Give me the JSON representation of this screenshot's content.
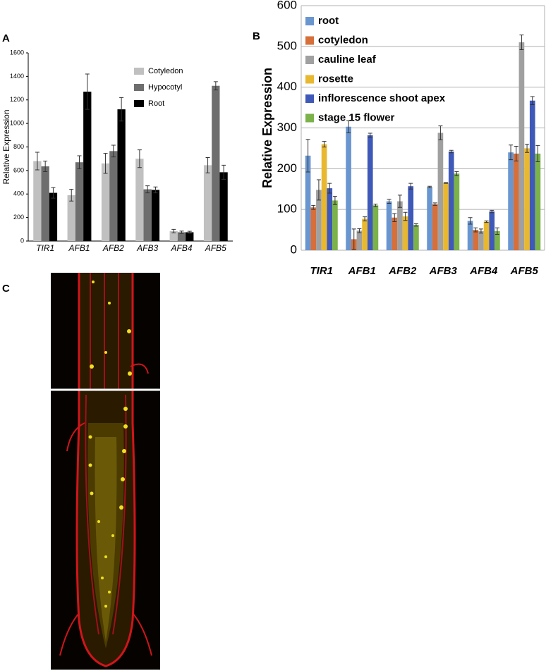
{
  "panels": {
    "a": "A",
    "b": "B",
    "c": "C"
  },
  "chart_data": [
    {
      "type": "bar",
      "ylabel": "Relative Expression",
      "categories": [
        "TIR1",
        "AFB1",
        "AFB2",
        "AFB3",
        "AFB4",
        "AFB5"
      ],
      "ylim": [
        0,
        1600
      ],
      "yticks": [
        0,
        200,
        400,
        600,
        800,
        1000,
        1200,
        1400,
        1600
      ],
      "grid": false,
      "series": [
        {
          "name": "Cotyledon",
          "color": "#c0c0c0",
          "values": [
            680,
            390,
            660,
            700,
            85,
            645
          ],
          "errors": [
            75,
            50,
            85,
            75,
            15,
            65
          ]
        },
        {
          "name": "Hypocotyl",
          "color": "#6e6e6e",
          "values": [
            635,
            670,
            765,
            440,
            75,
            1320
          ],
          "errors": [
            45,
            55,
            50,
            30,
            10,
            35
          ]
        },
        {
          "name": "Root",
          "color": "#000000",
          "values": [
            410,
            1270,
            1120,
            435,
            75,
            585
          ],
          "errors": [
            45,
            150,
            100,
            25,
            8,
            60
          ]
        }
      ]
    },
    {
      "type": "bar",
      "ylabel": "Relative Expression",
      "categories": [
        "TIR1",
        "AFB1",
        "AFB2",
        "AFB3",
        "AFB4",
        "AFB5"
      ],
      "ylim": [
        0,
        600
      ],
      "yticks": [
        0,
        100,
        200,
        300,
        400,
        500,
        600
      ],
      "grid": true,
      "series": [
        {
          "name": "root",
          "color": "#6a96d0",
          "values": [
            232,
            303,
            120,
            155,
            72,
            240
          ],
          "errors": [
            40,
            15,
            5,
            2,
            8,
            18
          ]
        },
        {
          "name": "cotyledon",
          "color": "#d66f3a",
          "values": [
            105,
            27,
            80,
            113,
            50,
            237
          ],
          "errors": [
            5,
            25,
            10,
            3,
            5,
            18
          ]
        },
        {
          "name": "cauline leaf",
          "color": "#a0a0a0",
          "values": [
            148,
            48,
            120,
            288,
            47,
            510
          ],
          "errors": [
            25,
            5,
            15,
            17,
            5,
            18
          ]
        },
        {
          "name": "rosette",
          "color": "#e8b830",
          "values": [
            260,
            77,
            83,
            165,
            70,
            250
          ],
          "errors": [
            7,
            5,
            10,
            1,
            2,
            10
          ]
        },
        {
          "name": "inflorescence shoot apex",
          "color": "#3f59b8",
          "values": [
            152,
            282,
            157,
            242,
            95,
            367
          ],
          "errors": [
            12,
            5,
            7,
            3,
            3,
            10
          ]
        },
        {
          "name": "stage 15 flower",
          "color": "#7cb24a",
          "values": [
            122,
            110,
            62,
            188,
            47,
            237
          ],
          "errors": [
            10,
            3,
            3,
            5,
            8,
            20
          ]
        }
      ]
    }
  ]
}
